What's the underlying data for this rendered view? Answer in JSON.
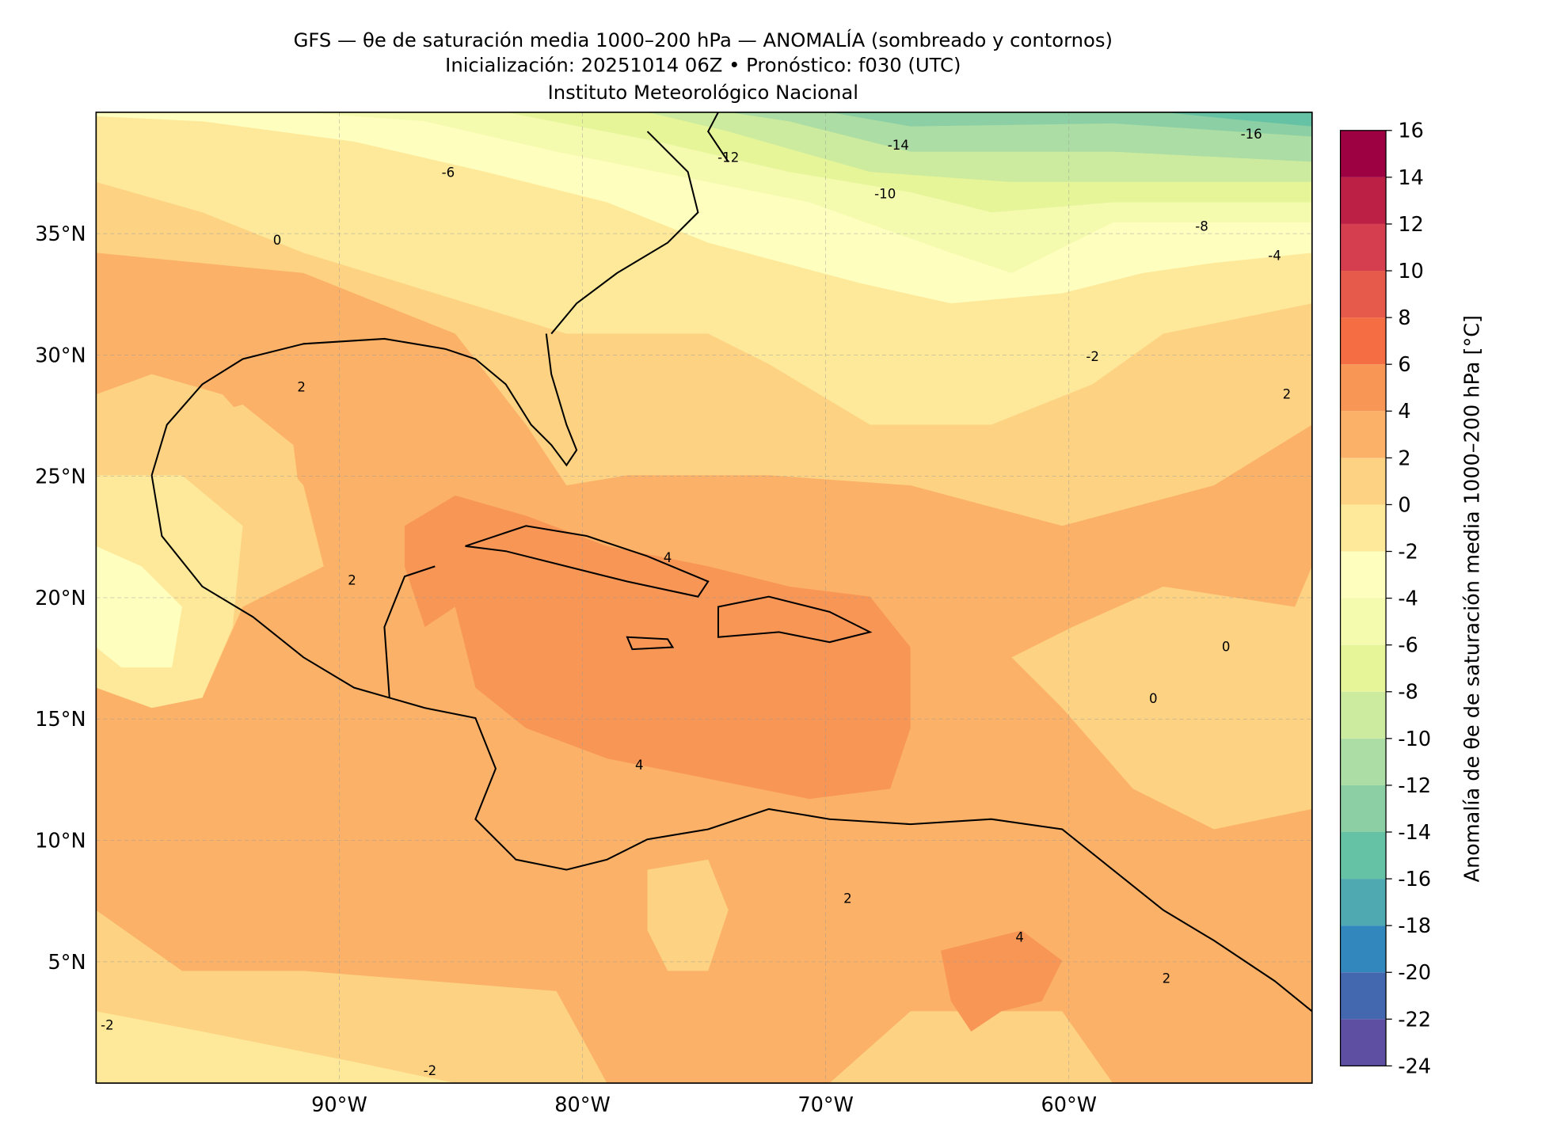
{
  "title": [
    "GFS — θe de saturación media 1000–200 hPa — ANOMALÍA (sombreado y contornos)",
    "Inicialización: 20251014 06Z   •   Pronóstico: f030 (UTC)",
    "Instituto Meteorológico Nacional"
  ],
  "map": {
    "xlim": [
      -100,
      -50
    ],
    "ylim": [
      0,
      40
    ],
    "xticks": [
      {
        "value": -90,
        "label": "90°W"
      },
      {
        "value": -80,
        "label": "80°W"
      },
      {
        "value": -70,
        "label": "70°W"
      },
      {
        "value": -60,
        "label": "60°W"
      }
    ],
    "yticks": [
      {
        "value": 5,
        "label": "5°N"
      },
      {
        "value": 10,
        "label": "10°N"
      },
      {
        "value": 15,
        "label": "15°N"
      },
      {
        "value": 20,
        "label": "20°N"
      },
      {
        "value": 25,
        "label": "25°N"
      },
      {
        "value": 30,
        "label": "30°N"
      },
      {
        "value": 35,
        "label": "35°N"
      }
    ],
    "grid": true,
    "contour_labels": [
      -16,
      -14,
      -12,
      -10,
      -8,
      -6,
      -4,
      -2,
      0,
      2,
      2,
      4,
      4,
      2,
      0,
      0,
      -2,
      -2,
      2,
      4,
      2
    ]
  },
  "colorbar": {
    "label": "Anomalía de θe de saturación media 1000–200 hPa [°C]",
    "ticks": [
      -24,
      -22,
      -20,
      -18,
      -16,
      -14,
      -12,
      -10,
      -8,
      -6,
      -4,
      -2,
      0,
      2,
      4,
      6,
      8,
      10,
      12,
      14,
      16
    ],
    "colors": [
      "#5e4fa2",
      "#4468b0",
      "#3288bd",
      "#4fa9b1",
      "#66c2a5",
      "#8ccfa4",
      "#abdda4",
      "#cdeb9e",
      "#e6f598",
      "#f4faae",
      "#fefebe",
      "#fee899",
      "#fdd283",
      "#fbb167",
      "#f89656",
      "#f46d43",
      "#e55a4a",
      "#d53e4f",
      "#bc2145",
      "#9e0142"
    ]
  }
}
